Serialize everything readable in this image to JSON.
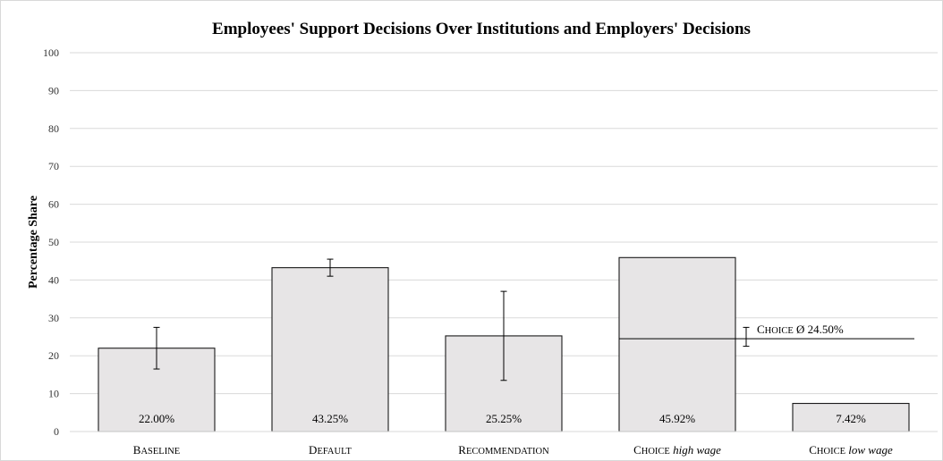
{
  "chart_data": {
    "type": "bar",
    "title": "Employees' Support Decisions Over Institutions and Employers' Decisions",
    "ylabel": "Percentage Share",
    "xlabel": "",
    "ylim": [
      0,
      100
    ],
    "yticks": [
      0,
      10,
      20,
      30,
      40,
      50,
      60,
      70,
      80,
      90,
      100
    ],
    "grid": true,
    "categories": [
      {
        "main": "Baseline",
        "extra": ""
      },
      {
        "main": "Default",
        "extra": ""
      },
      {
        "main": "Recommendation",
        "extra": ""
      },
      {
        "main": "Choice",
        "extra": "high wage"
      },
      {
        "main": "Choice",
        "extra": "low wage"
      }
    ],
    "values": [
      22.0,
      43.25,
      25.25,
      45.92,
      7.42
    ],
    "value_labels": [
      "22.00%",
      "43.25%",
      "25.25%",
      "45.92%",
      "7.42%"
    ],
    "error_bars": [
      {
        "low": 16.5,
        "high": 27.5
      },
      {
        "low": 41.0,
        "high": 45.5
      },
      {
        "low": 13.5,
        "high": 37.0
      },
      null,
      null
    ],
    "reference_line": {
      "label": "Choice Ø 24.50%",
      "value": 24.5,
      "error_low": 22.5,
      "error_high": 27.5
    }
  }
}
